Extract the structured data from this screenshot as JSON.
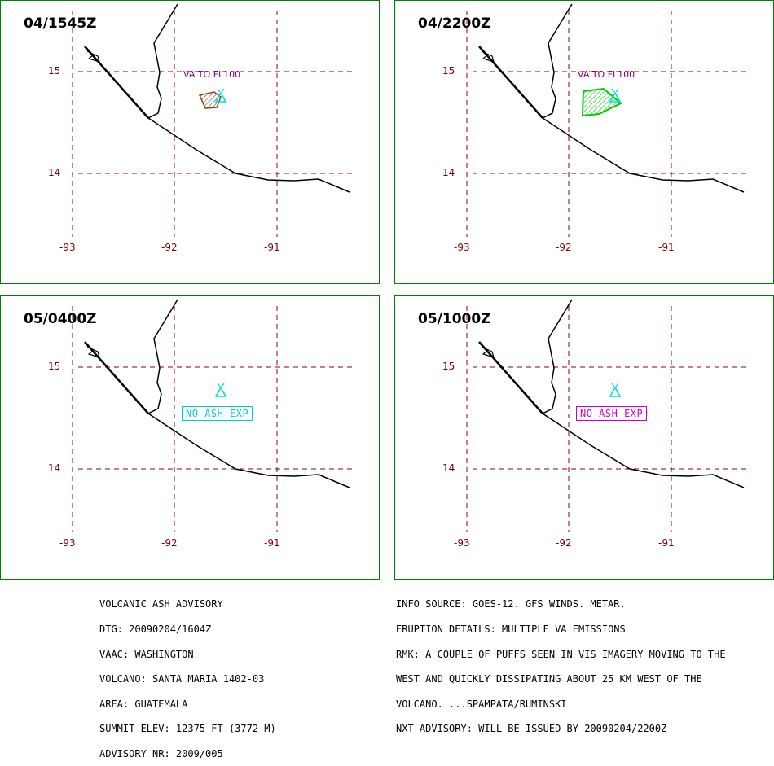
{
  "colors": {
    "frame": "#008000",
    "grid": "#8b0000",
    "coast": "#000000",
    "axis_label": "#800000",
    "volcano": "#00e0e0",
    "va_label": "#800080",
    "ash_panel1": "#8b4513",
    "ash_panel2": "#00cc00",
    "no_ash_panel3": "#00cccc",
    "no_ash_panel4": "#cc00cc"
  },
  "lat_labels": [
    "15",
    "14"
  ],
  "lon_labels": [
    "-93",
    "-92",
    "-91"
  ],
  "panels": [
    {
      "time": "04/1545Z",
      "va_label": "VA TO FL100",
      "no_ash": ""
    },
    {
      "time": "04/2200Z",
      "va_label": "VA TO FL100",
      "no_ash": ""
    },
    {
      "time": "05/0400Z",
      "va_label": "",
      "no_ash": "NO ASH EXP"
    },
    {
      "time": "05/1000Z",
      "va_label": "",
      "no_ash": "NO ASH EXP"
    }
  ],
  "advisory_left": [
    "VOLCANIC ASH ADVISORY",
    "DTG: 20090204/1604Z",
    "VAAC: WASHINGTON",
    "VOLCANO: SANTA MARIA 1402-03",
    "AREA: GUATEMALA",
    "SUMMIT ELEV: 12375 FT (3772 M)",
    "ADVISORY NR: 2009/005"
  ],
  "advisory_right": [
    "INFO SOURCE: GOES-12. GFS WINDS. METAR.",
    "ERUPTION DETAILS: MULTIPLE VA EMISSIONS",
    "RMK: A COUPLE OF PUFFS SEEN IN VIS IMAGERY MOVING TO THE",
    "WEST AND QUICKLY DISSIPATING ABOUT 25 KM WEST OF THE",
    "VOLCANO. ...SPAMPATA/RUMINSKI",
    "NXT ADVISORY: WILL BE ISSUED BY 20090204/2200Z"
  ]
}
